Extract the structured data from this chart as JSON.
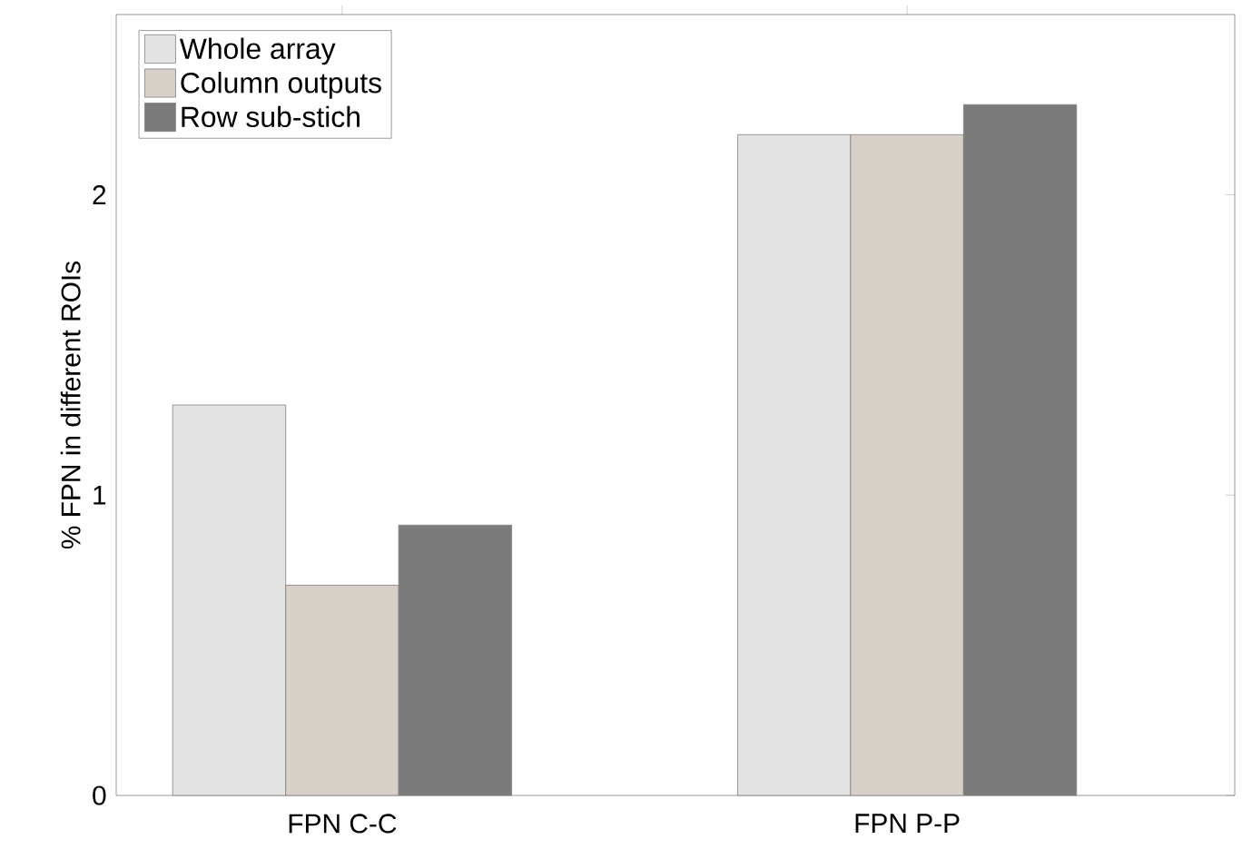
{
  "chart_data": {
    "type": "bar",
    "ylabel": "% FPN in different ROIs",
    "categories": [
      "FPN C-C",
      "FPN P-P"
    ],
    "series": [
      {
        "name": "Whole array",
        "color": "#e4e4e4",
        "values": [
          1.3,
          2.2
        ]
      },
      {
        "name": "Column outputs",
        "color": "#d6d0c8",
        "values": [
          0.7,
          2.2
        ]
      },
      {
        "name": "Row sub-stich",
        "color": "#7b7b7b",
        "values": [
          0.9,
          2.3
        ]
      }
    ],
    "ylim": [
      0,
      2.6
    ],
    "yticks": [
      0,
      1,
      2
    ],
    "grid": false,
    "legend": "top left"
  }
}
